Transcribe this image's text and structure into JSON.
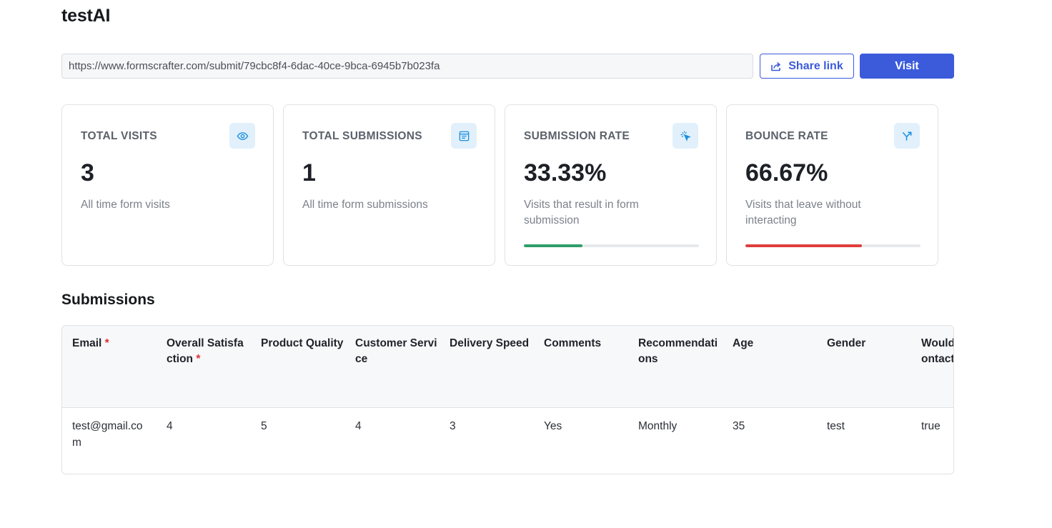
{
  "page": {
    "title": "testAI"
  },
  "share": {
    "url": "https://www.formscrafter.com/submit/79cbc8f4-6dac-40ce-9bca-6945b7b023fa",
    "share_label": "Share link",
    "visit_label": "Visit",
    "accent_color": "#3b5bdb"
  },
  "stats": [
    {
      "title": "TOTAL VISITS",
      "value": "3",
      "description": "All time form visits",
      "icon": "eye-icon"
    },
    {
      "title": "TOTAL SUBMISSIONS",
      "value": "1",
      "description": "All time form submissions",
      "icon": "form-icon"
    },
    {
      "title": "SUBMISSION RATE",
      "value": "33.33%",
      "description": "Visits that result in form submission",
      "icon": "cursor-click-icon",
      "progress": 33.33,
      "progress_color": "#2f9e6a"
    },
    {
      "title": "BOUNCE RATE",
      "value": "66.67%",
      "description": "Visits that leave without interacting",
      "icon": "split-arrow-icon",
      "progress": 66.67,
      "progress_color": "#e03e3e"
    }
  ],
  "submissions": {
    "title": "Submissions",
    "columns": [
      {
        "label": "Email",
        "required": true
      },
      {
        "label": "Overall Satisfaction",
        "required": true
      },
      {
        "label": "Product Quality",
        "required": false
      },
      {
        "label": "Customer Service",
        "required": false
      },
      {
        "label": "Delivery Speed",
        "required": false
      },
      {
        "label": "Comments",
        "required": false
      },
      {
        "label": "Recommendations",
        "required": false
      },
      {
        "label": "Age",
        "required": false
      },
      {
        "label": "Gender",
        "required": false
      },
      {
        "label": "Would like to contact",
        "required": false
      }
    ],
    "rows": [
      [
        "test@gmail.com",
        "4",
        "5",
        "4",
        "3",
        "Yes",
        "Monthly",
        "35",
        "test",
        "true"
      ]
    ]
  }
}
